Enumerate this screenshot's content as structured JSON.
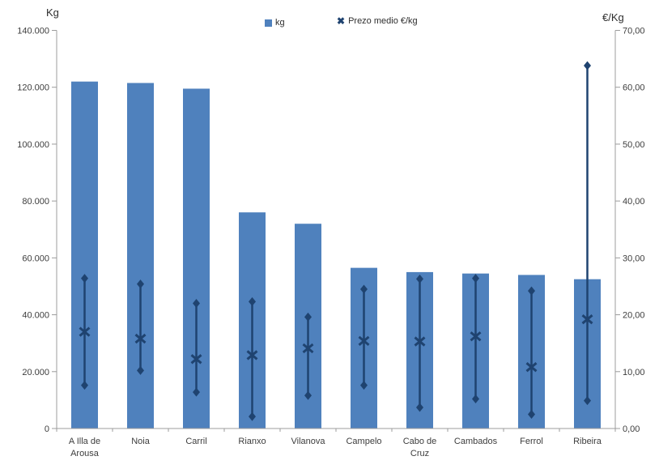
{
  "chart": {
    "background": "#ffffff",
    "colors": {
      "bar": "#4f81bd",
      "marker": "#1f4370",
      "axis_line": "#9c9c9c",
      "tick_text": "#3d3d3d",
      "title_text": "#2e2e2e"
    },
    "legend": {
      "bar_swatch": "square-icon",
      "marker_swatch": "x-icon",
      "x_glyph": "✖"
    }
  },
  "chart_data": {
    "type": "bar",
    "title": "",
    "categories": [
      "A Illa de Arousa",
      "Noia",
      "Carril",
      "Rianxo",
      "Vilanova",
      "Campelo",
      "Cabo de Cruz",
      "Cambados",
      "Ferrol",
      "Ribeira"
    ],
    "category_label_lines": [
      [
        "A Illa de",
        "Arousa"
      ],
      [
        "Noia"
      ],
      [
        "Carril"
      ],
      [
        "Rianxo"
      ],
      [
        "Vilanova"
      ],
      [
        "Campelo"
      ],
      [
        "Cabo de",
        "Cruz"
      ],
      [
        "Cambados"
      ],
      [
        "Ferrol"
      ],
      [
        "Ribeira"
      ]
    ],
    "series": [
      {
        "name": "kg",
        "type": "bar",
        "axis": "left",
        "values": [
          122000,
          121500,
          119500,
          76000,
          72000,
          56500,
          55000,
          54500,
          54000,
          52500
        ]
      },
      {
        "name": "Prezo medio €/kg",
        "type": "highlow-x",
        "axis": "right",
        "mean": [
          17.0,
          15.8,
          12.2,
          12.9,
          14.1,
          15.4,
          15.3,
          16.2,
          10.8,
          19.2
        ],
        "high": [
          26.4,
          25.4,
          22.0,
          22.3,
          19.6,
          24.5,
          26.3,
          26.4,
          24.2,
          63.8
        ],
        "low": [
          7.6,
          10.2,
          6.4,
          2.1,
          5.8,
          7.6,
          3.7,
          5.2,
          2.5,
          4.9
        ]
      }
    ],
    "left_axis": {
      "title": "Kg",
      "min": 0,
      "max": 140000,
      "step": 20000,
      "tick_values": [
        0,
        20000,
        40000,
        60000,
        80000,
        100000,
        120000,
        140000
      ],
      "tick_labels": [
        "0",
        "20.000",
        "40.000",
        "60.000",
        "80.000",
        "100.000",
        "120.000",
        "140.000"
      ]
    },
    "right_axis": {
      "title": "€/Kg",
      "min": 0,
      "max": 70,
      "step": 10,
      "tick_values": [
        0,
        10,
        20,
        30,
        40,
        50,
        60,
        70
      ],
      "tick_labels": [
        "0,00",
        "10,00",
        "20,00",
        "30,00",
        "40,00",
        "50,00",
        "60,00",
        "70,00"
      ]
    },
    "grid": false,
    "legend_position": "top-center"
  }
}
